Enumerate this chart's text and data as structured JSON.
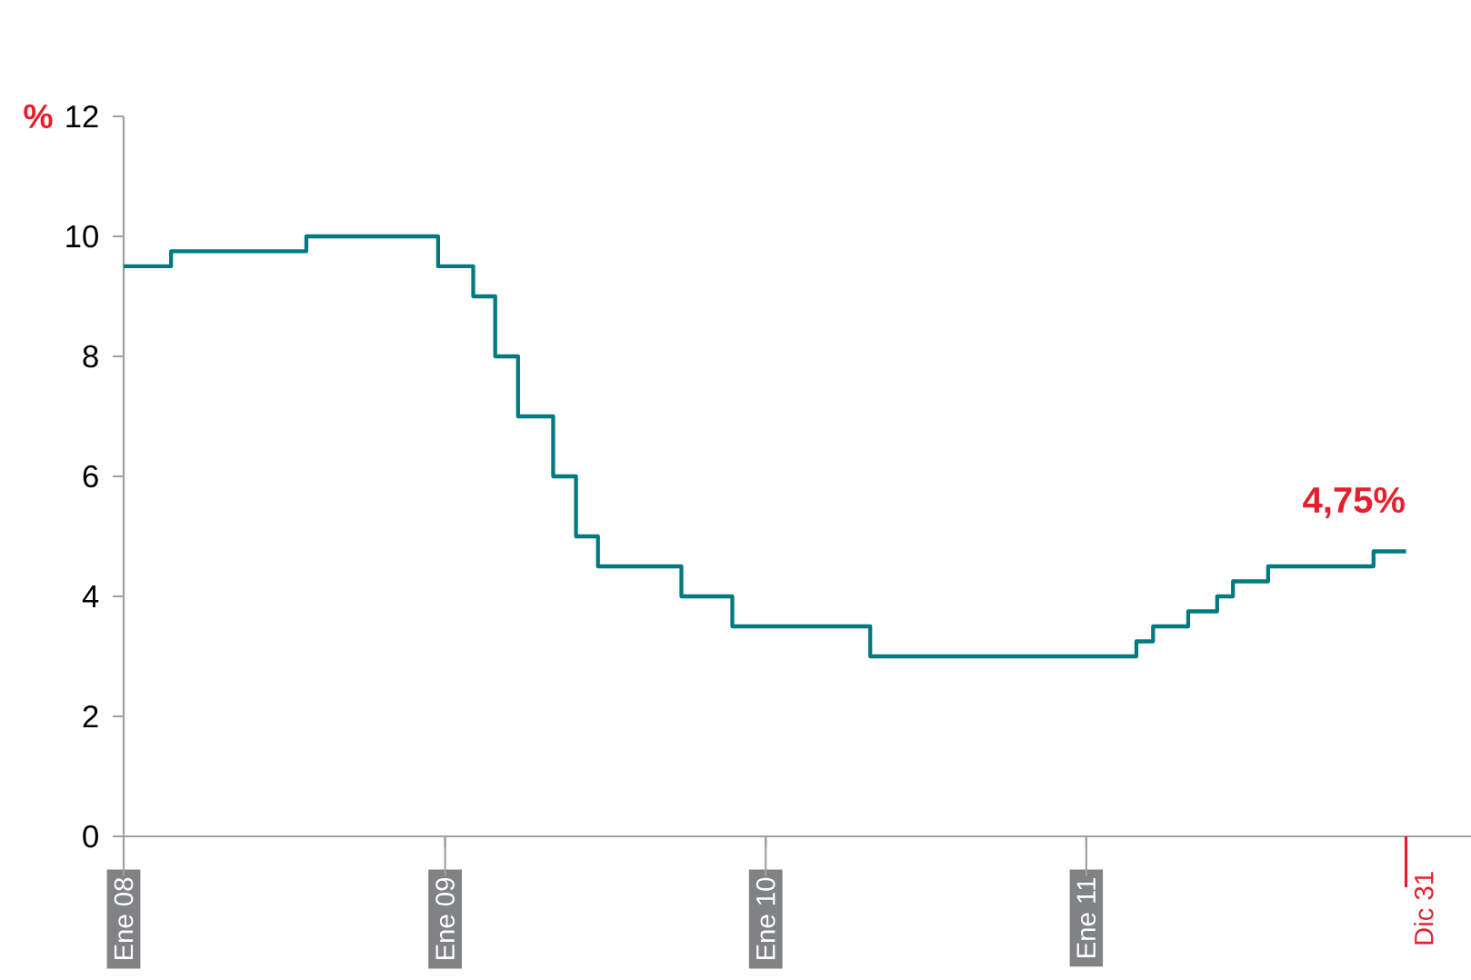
{
  "chart_data": {
    "type": "step",
    "ylabel": "%",
    "x": [
      "2008-01-01",
      "2008-02-24",
      "2008-07-27",
      "2008-12-24",
      "2009-02-02",
      "2009-02-27",
      "2009-03-25",
      "2009-05-04",
      "2009-05-30",
      "2009-06-24",
      "2009-09-27",
      "2009-11-24",
      "2010-04-30",
      "2011-02-27",
      "2011-03-18",
      "2011-04-27",
      "2011-05-30",
      "2011-06-17",
      "2011-07-27",
      "2011-11-24",
      "2011-12-31"
    ],
    "values": [
      9.5,
      9.75,
      10,
      9.5,
      9,
      8,
      7,
      6,
      5,
      4.5,
      4,
      3.5,
      3,
      3.25,
      3.5,
      3.75,
      4,
      4.25,
      4.5,
      4.75,
      4.75
    ],
    "color": "#007a80",
    "xlim": [
      "2008-01-01",
      "2012-03-14"
    ],
    "ylim": [
      0,
      12
    ],
    "xticks": [
      {
        "value": "2008-01-01",
        "label": "Ene 08"
      },
      {
        "value": "2009-01-01",
        "label": "Ene 09"
      },
      {
        "value": "2010-01-01",
        "label": "Ene 10"
      },
      {
        "value": "2011-01-01",
        "label": "Ene 11"
      }
    ],
    "yticks": [
      0,
      2,
      4,
      6,
      8,
      10,
      12
    ],
    "ref_lines": [
      {
        "axis": "x",
        "value": "2011-12-31",
        "label": "Dic 31",
        "color": "#e5202e"
      }
    ],
    "annotations": [
      {
        "text": "4,75%",
        "x": "2011-12-31",
        "y": 4.75
      }
    ]
  }
}
